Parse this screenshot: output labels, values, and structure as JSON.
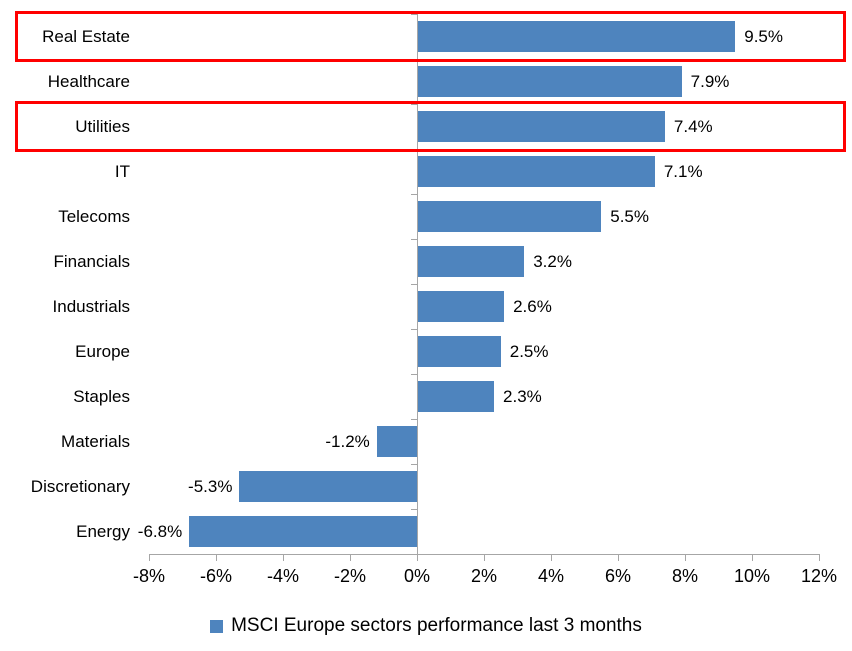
{
  "chart_data": {
    "type": "bar",
    "orientation": "horizontal",
    "title": "",
    "categories": [
      "Real Estate",
      "Healthcare",
      "Utilities",
      "IT",
      "Telecoms",
      "Financials",
      "Industrials",
      "Europe",
      "Staples",
      "Materials",
      "Discretionary",
      "Energy"
    ],
    "values": [
      9.5,
      7.9,
      7.4,
      7.1,
      5.5,
      3.2,
      2.6,
      2.5,
      2.3,
      -1.2,
      -5.3,
      -6.8
    ],
    "value_labels": [
      "9.5%",
      "7.9%",
      "7.4%",
      "7.1%",
      "5.5%",
      "3.2%",
      "2.6%",
      "2.5%",
      "2.3%",
      "-1.2%",
      "-5.3%",
      "-6.8%"
    ],
    "x_axis": {
      "min": -8,
      "max": 12,
      "step": 2,
      "tick_labels": [
        "-8%",
        "-6%",
        "-4%",
        "-2%",
        "0%",
        "2%",
        "4%",
        "6%",
        "8%",
        "10%",
        "12%"
      ]
    },
    "grid": false,
    "legend": {
      "position": "bottom",
      "label": "MSCI Europe sectors performance last 3 months"
    },
    "highlights": [
      {
        "category": "Real Estate"
      },
      {
        "category": "Utilities"
      }
    ]
  },
  "colors": {
    "bar": "#4E84BE",
    "axis": "#A6A6A6",
    "highlight": "#FF0000",
    "text": "#000000"
  }
}
